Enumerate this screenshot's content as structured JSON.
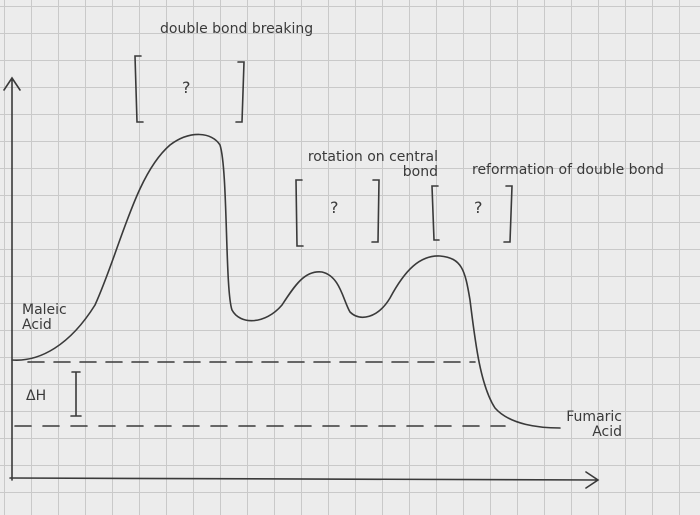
{
  "labels": {
    "top": "double bond breaking",
    "middle": "rotation on central bond",
    "right": "reformation of double bond"
  },
  "placeholders": [
    "?",
    "?",
    "?"
  ],
  "reactant": "Maleic Acid",
  "product": "Fumaric Acid",
  "enthalpy": "ΔH"
}
